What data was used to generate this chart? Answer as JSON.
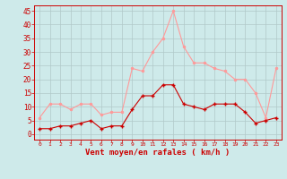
{
  "hours": [
    0,
    1,
    2,
    3,
    4,
    5,
    6,
    7,
    8,
    9,
    10,
    11,
    12,
    13,
    14,
    15,
    16,
    17,
    18,
    19,
    20,
    21,
    22,
    23
  ],
  "wind_avg": [
    2,
    2,
    3,
    3,
    4,
    5,
    2,
    3,
    3,
    9,
    14,
    14,
    18,
    18,
    11,
    10,
    9,
    11,
    11,
    11,
    8,
    4,
    5,
    6
  ],
  "wind_gust": [
    6,
    11,
    11,
    9,
    11,
    11,
    7,
    8,
    8,
    24,
    23,
    30,
    35,
    45,
    32,
    26,
    26,
    24,
    23,
    20,
    20,
    15,
    6,
    24
  ],
  "bg_color": "#ceeaea",
  "grid_color": "#b0c8c8",
  "avg_color": "#cc0000",
  "gust_color": "#ff9999",
  "xlabel": "Vent moyen/en rafales ( km/h )",
  "tick_color": "#cc0000",
  "yticks": [
    0,
    5,
    10,
    15,
    20,
    25,
    30,
    35,
    40,
    45
  ],
  "ylim": [
    -2,
    47
  ],
  "xlim": [
    -0.5,
    23.5
  ]
}
